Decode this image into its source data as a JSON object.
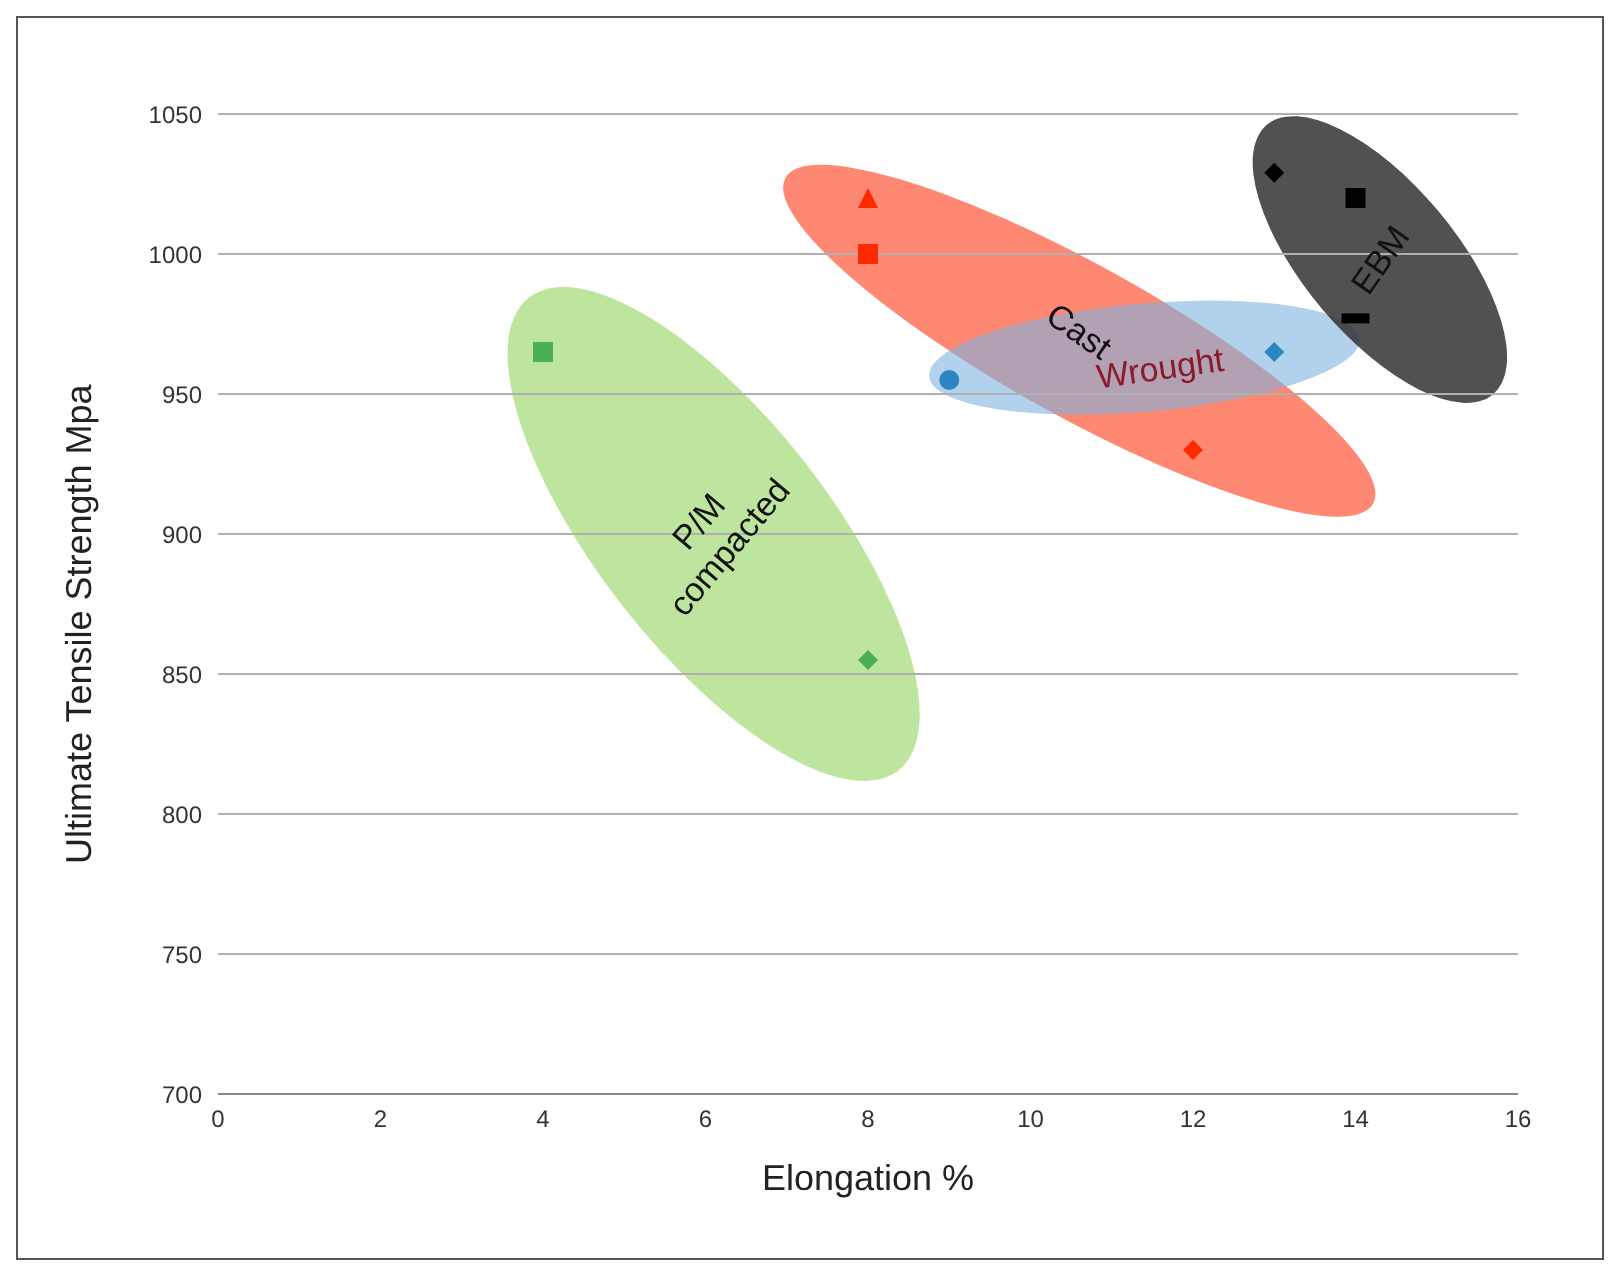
{
  "chart_data": {
    "type": "scatter",
    "xlabel": "Elongation %",
    "ylabel": "Ultimate Tensile Strength Mpa",
    "xlim": [
      0,
      16
    ],
    "xticks": [
      0,
      2,
      4,
      6,
      8,
      10,
      12,
      14,
      16
    ],
    "ylim": [
      700,
      1050
    ],
    "yticks": [
      700,
      750,
      800,
      850,
      900,
      950,
      1000,
      1050
    ],
    "grid": "y",
    "legend": false,
    "series": [
      {
        "color": "#4caf50",
        "marker": "square",
        "x": [
          4
        ],
        "values": [
          965
        ]
      },
      {
        "color": "#4caf50",
        "marker": "diamond",
        "x": [
          8
        ],
        "values": [
          855
        ]
      },
      {
        "color": "#ff2a00",
        "marker": "triangle",
        "x": [
          8
        ],
        "values": [
          1020
        ]
      },
      {
        "color": "#ff2a00",
        "marker": "square",
        "x": [
          8
        ],
        "values": [
          1000
        ]
      },
      {
        "color": "#ff2a00",
        "marker": "diamond",
        "x": [
          12
        ],
        "values": [
          930
        ]
      },
      {
        "color": "#2e86c1",
        "marker": "circle",
        "x": [
          9
        ],
        "values": [
          955
        ]
      },
      {
        "color": "#2e86c1",
        "marker": "diamond",
        "x": [
          13
        ],
        "values": [
          965
        ]
      },
      {
        "color": "#000000",
        "marker": "diamond",
        "x": [
          13
        ],
        "values": [
          1029
        ]
      },
      {
        "color": "#000000",
        "marker": "square",
        "x": [
          14
        ],
        "values": [
          1020
        ]
      },
      {
        "color": "#000000",
        "x": [
          14
        ],
        "values": [
          977
        ]
      }
    ],
    "annotations": [
      "P/M compacted",
      "Cast",
      "Wrought",
      "EBM"
    ]
  }
}
